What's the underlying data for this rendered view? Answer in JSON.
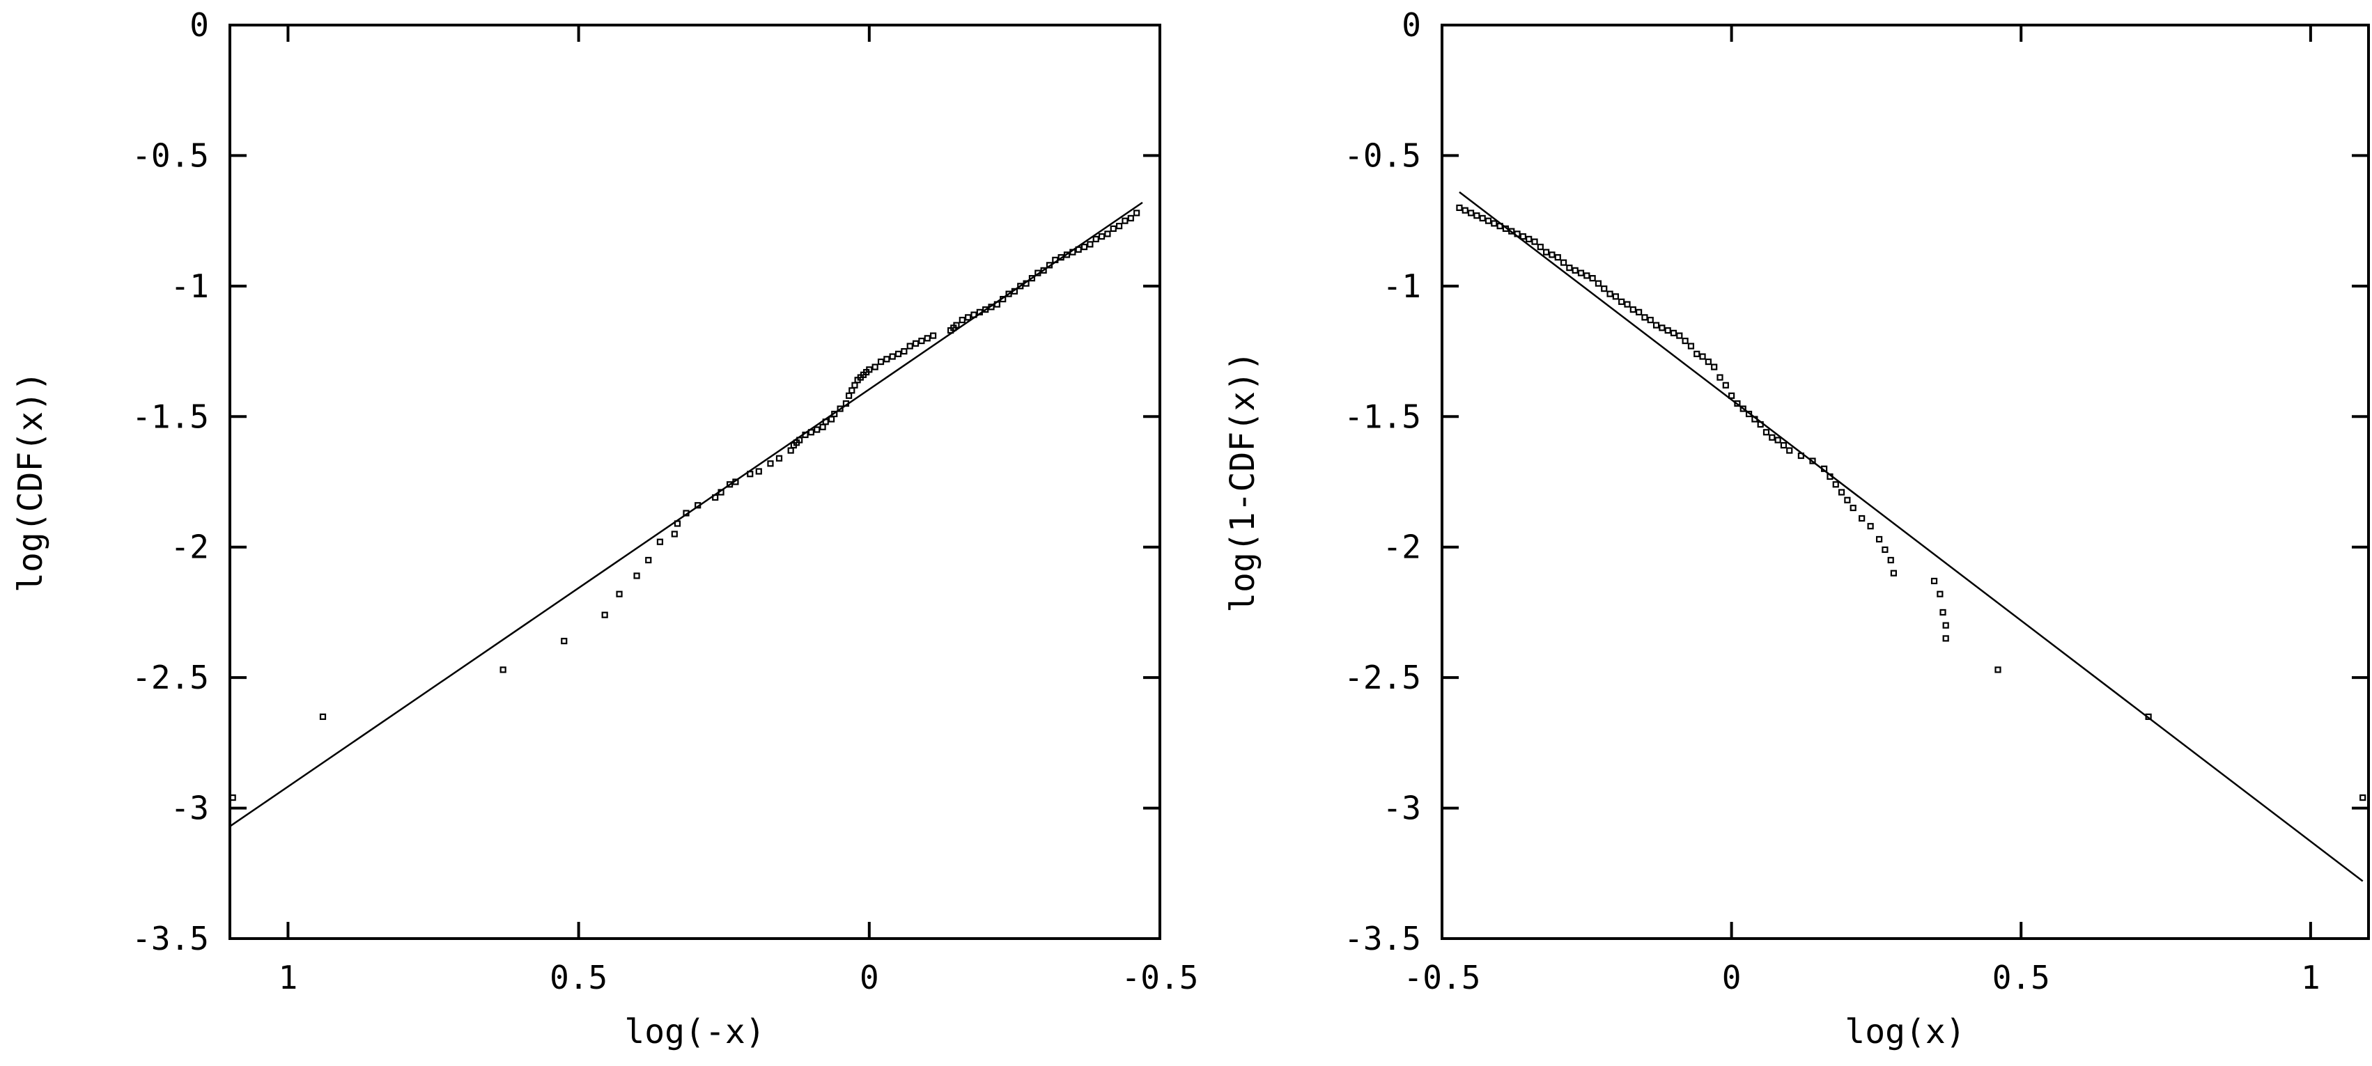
{
  "chart_data": [
    {
      "type": "scatter",
      "xlabel": "log(-x)",
      "ylabel": "log(CDF(x))",
      "xlim": [
        1.1,
        -0.5
      ],
      "ylim": [
        -3.5,
        0
      ],
      "reversed_x": true,
      "xticks": [
        1,
        0.5,
        0,
        -0.5
      ],
      "xtick_labels": [
        "1",
        "0.5",
        "0",
        "-0.5"
      ],
      "yticks": [
        0,
        -0.5,
        -1,
        -1.5,
        -2,
        -2.5,
        -3,
        -3.5
      ],
      "ytick_labels": [
        "0",
        "-0.5",
        "-1",
        "-1.5",
        "-2",
        "-2.5",
        "-3",
        "-3.5"
      ],
      "grid": false,
      "fit_line": {
        "x": [
          1.1,
          -0.47
        ],
        "y": [
          -3.07,
          -0.68
        ]
      },
      "points": {
        "x": [
          1.095,
          0.94,
          0.63,
          0.525,
          0.455,
          0.43,
          0.4,
          0.38,
          0.36,
          0.335,
          0.33,
          0.315,
          0.295,
          0.265,
          0.255,
          0.24,
          0.23,
          0.205,
          0.19,
          0.17,
          0.155,
          0.135,
          0.13,
          0.125,
          0.12,
          0.11,
          0.1,
          0.09,
          0.08,
          0.075,
          0.065,
          0.06,
          0.05,
          0.04,
          0.035,
          0.03,
          0.025,
          0.02,
          0.015,
          0.01,
          0.005,
          0.0,
          -0.01,
          -0.02,
          -0.03,
          -0.04,
          -0.05,
          -0.06,
          -0.07,
          -0.08,
          -0.09,
          -0.1,
          -0.11,
          -0.14,
          -0.145,
          -0.15,
          -0.16,
          -0.17,
          -0.18,
          -0.19,
          -0.2,
          -0.21,
          -0.22,
          -0.23,
          -0.24,
          -0.25,
          -0.26,
          -0.27,
          -0.28,
          -0.29,
          -0.3,
          -0.31,
          -0.32,
          -0.33,
          -0.34,
          -0.35,
          -0.36,
          -0.37,
          -0.38,
          -0.39,
          -0.4,
          -0.41,
          -0.42,
          -0.43,
          -0.44,
          -0.45,
          -0.46
        ],
        "y": [
          -2.96,
          -2.65,
          -2.47,
          -2.36,
          -2.26,
          -2.18,
          -2.11,
          -2.05,
          -1.98,
          -1.95,
          -1.91,
          -1.87,
          -1.84,
          -1.81,
          -1.79,
          -1.76,
          -1.75,
          -1.72,
          -1.71,
          -1.68,
          -1.66,
          -1.63,
          -1.61,
          -1.6,
          -1.59,
          -1.57,
          -1.56,
          -1.55,
          -1.54,
          -1.52,
          -1.51,
          -1.49,
          -1.47,
          -1.45,
          -1.42,
          -1.4,
          -1.38,
          -1.36,
          -1.35,
          -1.34,
          -1.33,
          -1.32,
          -1.31,
          -1.29,
          -1.28,
          -1.27,
          -1.26,
          -1.25,
          -1.23,
          -1.22,
          -1.21,
          -1.2,
          -1.19,
          -1.17,
          -1.16,
          -1.15,
          -1.13,
          -1.12,
          -1.11,
          -1.1,
          -1.09,
          -1.08,
          -1.07,
          -1.05,
          -1.03,
          -1.02,
          -1.0,
          -0.99,
          -0.97,
          -0.95,
          -0.94,
          -0.92,
          -0.9,
          -0.89,
          -0.88,
          -0.87,
          -0.86,
          -0.85,
          -0.84,
          -0.82,
          -0.81,
          -0.8,
          -0.78,
          -0.77,
          -0.75,
          -0.74,
          -0.72
        ]
      }
    },
    {
      "type": "scatter",
      "xlabel": "log(x)",
      "ylabel": "log(1-CDF(x))",
      "xlim": [
        -0.5,
        1.1
      ],
      "ylim": [
        -3.5,
        0
      ],
      "reversed_x": false,
      "xticks": [
        -0.5,
        0,
        0.5,
        1
      ],
      "xtick_labels": [
        "-0.5",
        "0",
        "0.5",
        "1"
      ],
      "yticks": [
        0,
        -0.5,
        -1,
        -1.5,
        -2,
        -2.5,
        -3,
        -3.5
      ],
      "ytick_labels": [
        "0",
        "-0.5",
        "-1",
        "-1.5",
        "-2",
        "-2.5",
        "-3",
        "-3.5"
      ],
      "grid": false,
      "fit_line": {
        "x": [
          -0.47,
          1.09
        ],
        "y": [
          -0.64,
          -3.28
        ]
      },
      "points": {
        "x": [
          -0.47,
          -0.46,
          -0.45,
          -0.44,
          -0.43,
          -0.42,
          -0.41,
          -0.4,
          -0.39,
          -0.38,
          -0.37,
          -0.36,
          -0.35,
          -0.34,
          -0.33,
          -0.32,
          -0.31,
          -0.3,
          -0.29,
          -0.28,
          -0.27,
          -0.26,
          -0.25,
          -0.24,
          -0.23,
          -0.22,
          -0.21,
          -0.2,
          -0.19,
          -0.18,
          -0.17,
          -0.16,
          -0.15,
          -0.14,
          -0.13,
          -0.12,
          -0.11,
          -0.1,
          -0.09,
          -0.08,
          -0.07,
          -0.06,
          -0.05,
          -0.04,
          -0.03,
          -0.02,
          -0.01,
          0.0,
          0.01,
          0.02,
          0.03,
          0.04,
          0.05,
          0.06,
          0.07,
          0.08,
          0.09,
          0.1,
          0.12,
          0.14,
          0.16,
          0.17,
          0.18,
          0.19,
          0.2,
          0.21,
          0.225,
          0.24,
          0.255,
          0.265,
          0.275,
          0.28,
          0.35,
          0.36,
          0.365,
          0.37,
          0.37,
          0.46,
          0.72,
          1.09
        ],
        "y": [
          -0.7,
          -0.71,
          -0.72,
          -0.73,
          -0.74,
          -0.75,
          -0.76,
          -0.77,
          -0.78,
          -0.79,
          -0.8,
          -0.81,
          -0.82,
          -0.83,
          -0.85,
          -0.87,
          -0.88,
          -0.89,
          -0.91,
          -0.93,
          -0.94,
          -0.95,
          -0.96,
          -0.97,
          -0.99,
          -1.01,
          -1.03,
          -1.04,
          -1.06,
          -1.07,
          -1.09,
          -1.1,
          -1.12,
          -1.13,
          -1.15,
          -1.16,
          -1.17,
          -1.18,
          -1.19,
          -1.21,
          -1.23,
          -1.26,
          -1.27,
          -1.29,
          -1.31,
          -1.35,
          -1.38,
          -1.42,
          -1.45,
          -1.47,
          -1.49,
          -1.51,
          -1.53,
          -1.56,
          -1.58,
          -1.59,
          -1.61,
          -1.63,
          -1.65,
          -1.67,
          -1.7,
          -1.73,
          -1.76,
          -1.79,
          -1.82,
          -1.85,
          -1.89,
          -1.92,
          -1.97,
          -2.01,
          -2.05,
          -2.1,
          -2.13,
          -2.18,
          -2.25,
          -2.3,
          -2.35,
          -2.47,
          -2.65,
          -2.96
        ]
      }
    }
  ]
}
